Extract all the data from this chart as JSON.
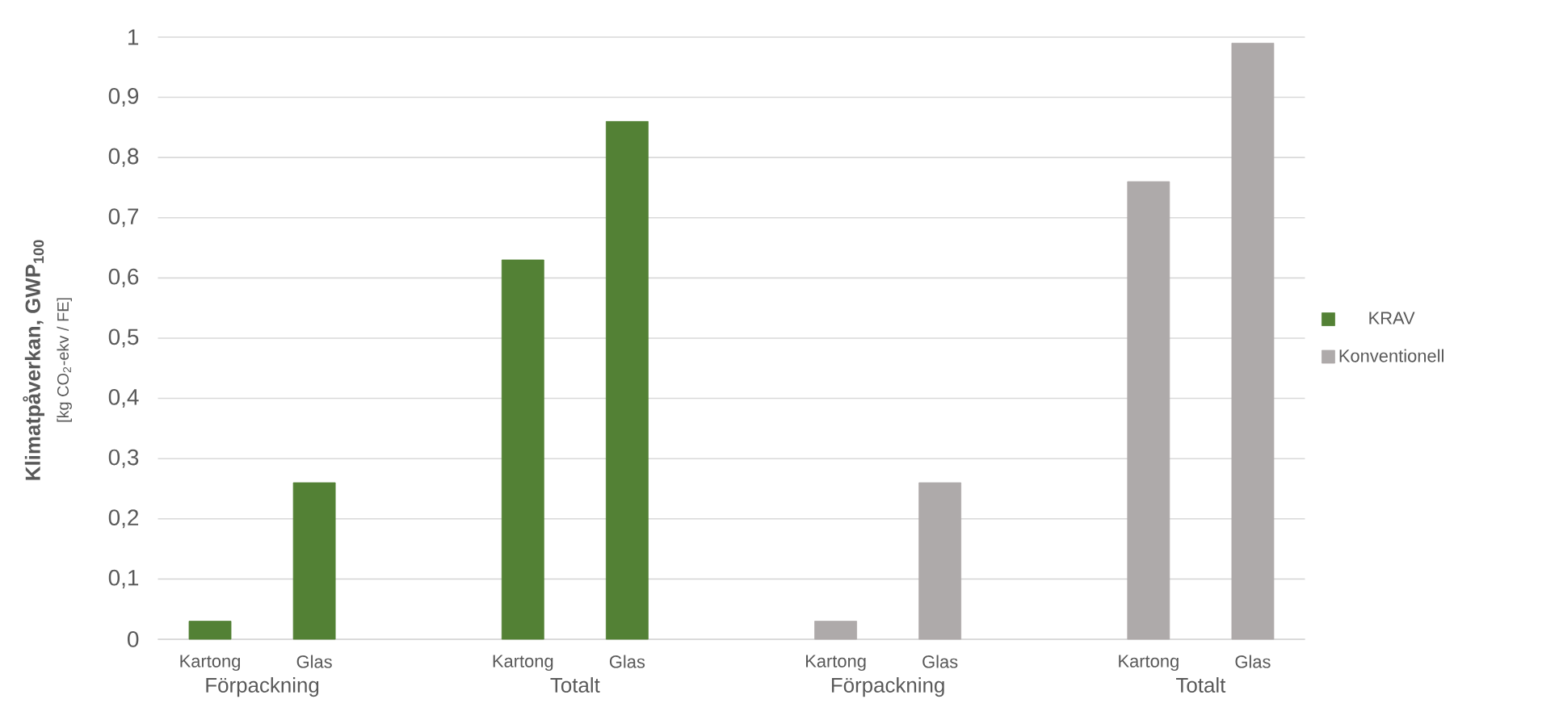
{
  "chart_data": {
    "type": "bar",
    "ylabel": "Klimatpåverkan, GWP$_{100}$",
    "categories": [
      "Kartong",
      "Glas",
      null,
      "Kartong",
      "Glas",
      null,
      "Kartong",
      "Glas",
      null,
      "Kartong",
      "Glas"
    ],
    "series": [
      {
        "name": "KRAV",
        "color": "#538135",
        "values": [
          0.03,
          0.26,
          null,
          0.63,
          0.86,
          null,
          null,
          null,
          null,
          null,
          null
        ]
      },
      {
        "name": "Konventionell",
        "color": "#aeaaaa",
        "values": [
          null,
          null,
          null,
          null,
          null,
          null,
          0.03,
          0.26,
          null,
          0.76,
          0.99
        ]
      }
    ],
    "annotations": [
      "[kg CO$_{2}$-ekv / FE]",
      "Förpackning",
      "Totalt",
      "Förpackning",
      "Totalt"
    ],
    "ylim": [
      0,
      1
    ],
    "yticks": [
      0,
      {
        "value": 0.1,
        "label": "0,1"
      },
      {
        "value": 0.2,
        "label": "0,2"
      },
      {
        "value": 0.3,
        "label": "0,3"
      },
      {
        "value": 0.4,
        "label": "0,4"
      },
      {
        "value": 0.5,
        "label": "0,5"
      },
      {
        "value": 0.6,
        "label": "0,6"
      },
      {
        "value": 0.7,
        "label": "0,7"
      },
      {
        "value": 0.8,
        "label": "0,8"
      },
      {
        "value": 0.9,
        "label": "0,9"
      },
      1
    ],
    "grid": "y",
    "legend": "right"
  }
}
